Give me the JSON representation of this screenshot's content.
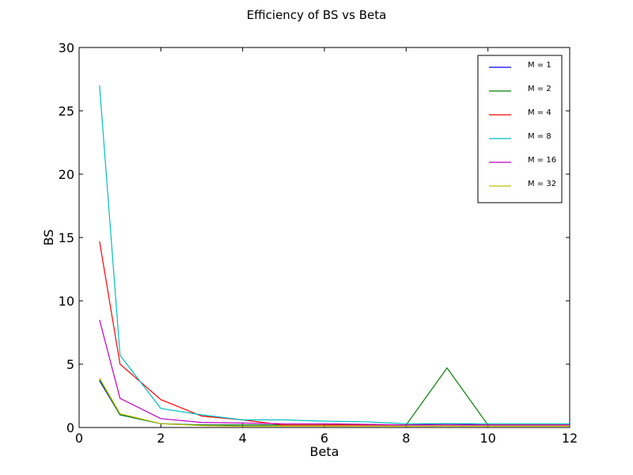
{
  "chart_data": {
    "type": "line",
    "title": "Efficiency of BS vs Beta",
    "xlabel": "Beta",
    "ylabel": "BS",
    "xlim": [
      0,
      12
    ],
    "ylim": [
      0,
      30
    ],
    "xticks": [
      0,
      2,
      4,
      6,
      8,
      10,
      12
    ],
    "yticks": [
      0,
      5,
      10,
      15,
      20,
      25,
      30
    ],
    "grid": false,
    "legend_placement": "top-right",
    "x": [
      0.5,
      1,
      2,
      3,
      4,
      5,
      6,
      7,
      8,
      9,
      10,
      11,
      12
    ],
    "series": [
      {
        "name": "M = 1",
        "color": "#0000ff",
        "values": [
          3.7,
          1.0,
          0.3,
          0.2,
          0.2,
          0.2,
          0.2,
          0.2,
          0.2,
          0.3,
          0.2,
          0.2,
          0.2
        ]
      },
      {
        "name": "M = 2",
        "color": "#008000",
        "values": [
          3.8,
          1.0,
          0.3,
          0.2,
          0.2,
          0.2,
          0.2,
          0.2,
          0.2,
          4.7,
          0.2,
          0.2,
          0.2
        ]
      },
      {
        "name": "M = 4",
        "color": "#ff0000",
        "values": [
          14.7,
          5.0,
          2.2,
          0.9,
          0.6,
          0.2,
          0.2,
          0.2,
          0.2,
          0.2,
          0.2,
          0.2,
          0.2
        ]
      },
      {
        "name": "M = 8",
        "color": "#00bfbf",
        "values": [
          27.0,
          5.7,
          1.5,
          1.0,
          0.6,
          0.6,
          0.5,
          0.45,
          0.3,
          0.3,
          0.3,
          0.3,
          0.3
        ]
      },
      {
        "name": "M = 16",
        "color": "#bf00bf",
        "values": [
          8.5,
          2.3,
          0.7,
          0.4,
          0.35,
          0.3,
          0.3,
          0.25,
          0.2,
          0.2,
          0.2,
          0.2,
          0.2
        ]
      },
      {
        "name": "M = 32",
        "color": "#bfbf00",
        "values": [
          3.9,
          1.1,
          0.3,
          0.15,
          0.1,
          0.1,
          0.1,
          0.1,
          0.1,
          0.1,
          0.1,
          0.1,
          0.1
        ]
      }
    ]
  }
}
